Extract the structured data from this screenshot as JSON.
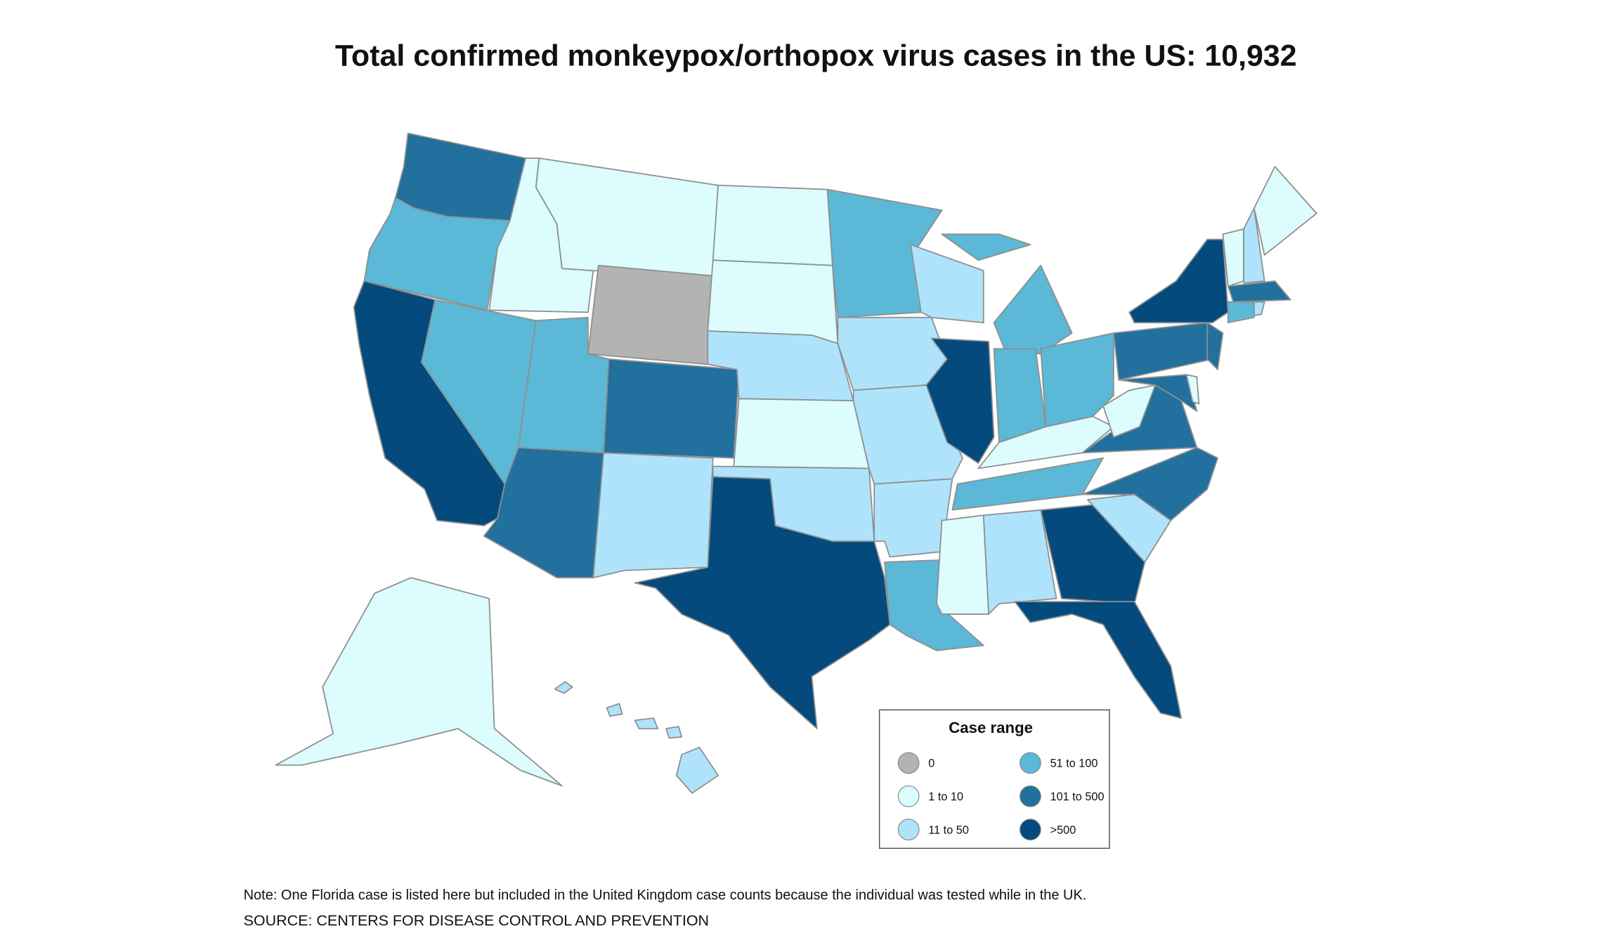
{
  "title": "Total confirmed monkeypox/orthopox virus cases in the US: 10,932",
  "legend": {
    "title": "Case range",
    "items": [
      {
        "label": "0",
        "color": "#b3b3b3"
      },
      {
        "label": "1 to 10",
        "color": "#dcfcfd"
      },
      {
        "label": "11 to 50",
        "color": "#aee3fb"
      },
      {
        "label": "51 to 100",
        "color": "#5bb8d6"
      },
      {
        "label": "101 to 500",
        "color": "#22709d"
      },
      {
        "label": ">500",
        "color": "#044a7c"
      }
    ]
  },
  "regions": {
    "WA": 4,
    "OR": 3,
    "CA": 5,
    "ID": 1,
    "NV": 3,
    "MT": 1,
    "WY": 0,
    "UT": 3,
    "AZ": 4,
    "CO": 4,
    "NM": 2,
    "ND": 1,
    "SD": 1,
    "NE": 2,
    "KS": 1,
    "OK": 2,
    "TX": 5,
    "MN": 3,
    "IA": 2,
    "MO": 2,
    "AR": 2,
    "LA": 3,
    "WI": 2,
    "IL": 5,
    "MI": 3,
    "IN": 3,
    "OH": 3,
    "KY": 1,
    "TN": 3,
    "MS": 1,
    "AL": 2,
    "GA": 5,
    "FL": 5,
    "SC": 2,
    "NC": 4,
    "VA": 4,
    "WV": 1,
    "PA": 4,
    "NY": 5,
    "NJ": 4,
    "MD": 4,
    "DE": 1,
    "VT": 1,
    "NH": 2,
    "ME": 1,
    "MA": 4,
    "CT": 3,
    "RI": 2,
    "AK": 1,
    "HI": 2
  },
  "note": "Note: One Florida case is listed here but included in the United Kingdom case counts because the individual was tested while in the UK.",
  "source": "SOURCE: CENTERS FOR DISEASE CONTROL AND PREVENTION"
}
